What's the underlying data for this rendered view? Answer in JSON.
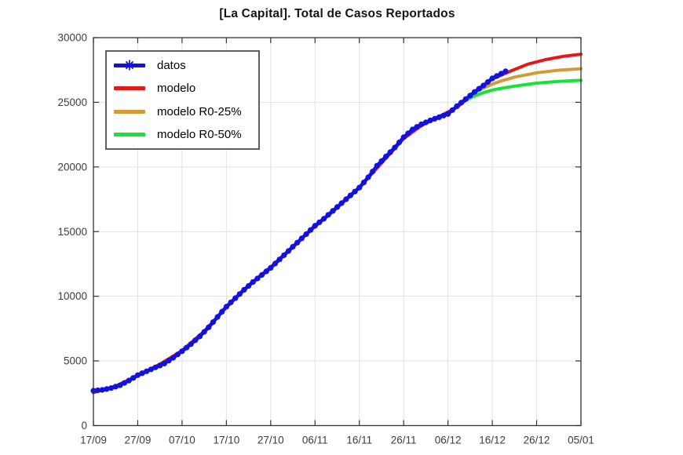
{
  "window": {
    "background": "#ffffff"
  },
  "chart_data": {
    "type": "line",
    "title": "[La Capital]. Total de Casos Reportados",
    "xlabel": "",
    "ylabel": "",
    "grid": true,
    "legend_position": "top-left",
    "x_axis": {
      "tick_labels": [
        "17/09",
        "27/09",
        "07/10",
        "17/10",
        "27/10",
        "06/11",
        "16/11",
        "26/11",
        "06/12",
        "16/12",
        "26/12",
        "05/01"
      ],
      "tick_days": [
        0,
        10,
        20,
        30,
        40,
        50,
        60,
        70,
        80,
        90,
        100,
        110
      ],
      "lim_days": [
        0,
        110
      ]
    },
    "y_axis": {
      "ticks": [
        0,
        5000,
        10000,
        15000,
        20000,
        25000,
        30000
      ],
      "tick_labels": [
        "0",
        "5000",
        "10000",
        "15000",
        "20000",
        "25000",
        "30000"
      ],
      "lim": [
        0,
        30000
      ]
    },
    "colors": {
      "grid": "#e1e1e1",
      "axis": "#333333",
      "tick_label": "#3d3d3d",
      "title": "#141414",
      "legend_border": "#5f5f5f"
    },
    "series": [
      {
        "name": "datos",
        "color": "#1111e0",
        "style": "line+marker",
        "marker": "*",
        "points": [
          [
            0,
            2700
          ],
          [
            2,
            2760
          ],
          [
            4,
            2900
          ],
          [
            6,
            3120
          ],
          [
            8,
            3480
          ],
          [
            10,
            3900
          ],
          [
            12,
            4200
          ],
          [
            14,
            4500
          ],
          [
            16,
            4800
          ],
          [
            18,
            5250
          ],
          [
            20,
            5750
          ],
          [
            22,
            6300
          ],
          [
            24,
            6900
          ],
          [
            26,
            7600
          ],
          [
            28,
            8400
          ],
          [
            30,
            9200
          ],
          [
            32,
            9850
          ],
          [
            34,
            10500
          ],
          [
            36,
            11100
          ],
          [
            38,
            11650
          ],
          [
            40,
            12200
          ],
          [
            42,
            12850
          ],
          [
            44,
            13500
          ],
          [
            46,
            14150
          ],
          [
            48,
            14800
          ],
          [
            50,
            15450
          ],
          [
            52,
            16000
          ],
          [
            54,
            16600
          ],
          [
            56,
            17200
          ],
          [
            58,
            17800
          ],
          [
            60,
            18400
          ],
          [
            62,
            19200
          ],
          [
            64,
            20100
          ],
          [
            66,
            20800
          ],
          [
            68,
            21500
          ],
          [
            70,
            22300
          ],
          [
            72,
            22900
          ],
          [
            74,
            23300
          ],
          [
            76,
            23600
          ],
          [
            78,
            23850
          ],
          [
            80,
            24100
          ],
          [
            82,
            24700
          ],
          [
            84,
            25250
          ],
          [
            86,
            25800
          ],
          [
            88,
            26300
          ],
          [
            90,
            26850
          ],
          [
            93,
            27400
          ]
        ]
      },
      {
        "name": "modelo",
        "color": "#e81717",
        "style": "line",
        "marker": null,
        "points": [
          [
            0,
            2550
          ],
          [
            5,
            3050
          ],
          [
            10,
            3850
          ],
          [
            15,
            4750
          ],
          [
            20,
            5800
          ],
          [
            25,
            7300
          ],
          [
            30,
            9150
          ],
          [
            35,
            10850
          ],
          [
            40,
            12250
          ],
          [
            45,
            13850
          ],
          [
            50,
            15400
          ],
          [
            55,
            16850
          ],
          [
            60,
            18400
          ],
          [
            65,
            20300
          ],
          [
            70,
            22200
          ],
          [
            74,
            23200
          ],
          [
            78,
            23900
          ],
          [
            82,
            24600
          ],
          [
            86,
            25700
          ],
          [
            90,
            26800
          ],
          [
            94,
            27400
          ],
          [
            98,
            27950
          ],
          [
            102,
            28300
          ],
          [
            106,
            28550
          ],
          [
            110,
            28720
          ]
        ]
      },
      {
        "name": "modelo R0-25%",
        "color": "#d49a36",
        "style": "line",
        "marker": null,
        "points": [
          [
            86,
            25750
          ],
          [
            88,
            26100
          ],
          [
            90,
            26400
          ],
          [
            92,
            26650
          ],
          [
            95,
            26950
          ],
          [
            100,
            27280
          ],
          [
            105,
            27480
          ],
          [
            110,
            27600
          ]
        ]
      },
      {
        "name": "modelo R0-50%",
        "color": "#15e335",
        "style": "line",
        "marker": null,
        "points": [
          [
            84,
            25150
          ],
          [
            86,
            25500
          ],
          [
            88,
            25750
          ],
          [
            90,
            25950
          ],
          [
            92,
            26080
          ],
          [
            95,
            26250
          ],
          [
            100,
            26480
          ],
          [
            105,
            26620
          ],
          [
            110,
            26700
          ]
        ]
      }
    ]
  }
}
